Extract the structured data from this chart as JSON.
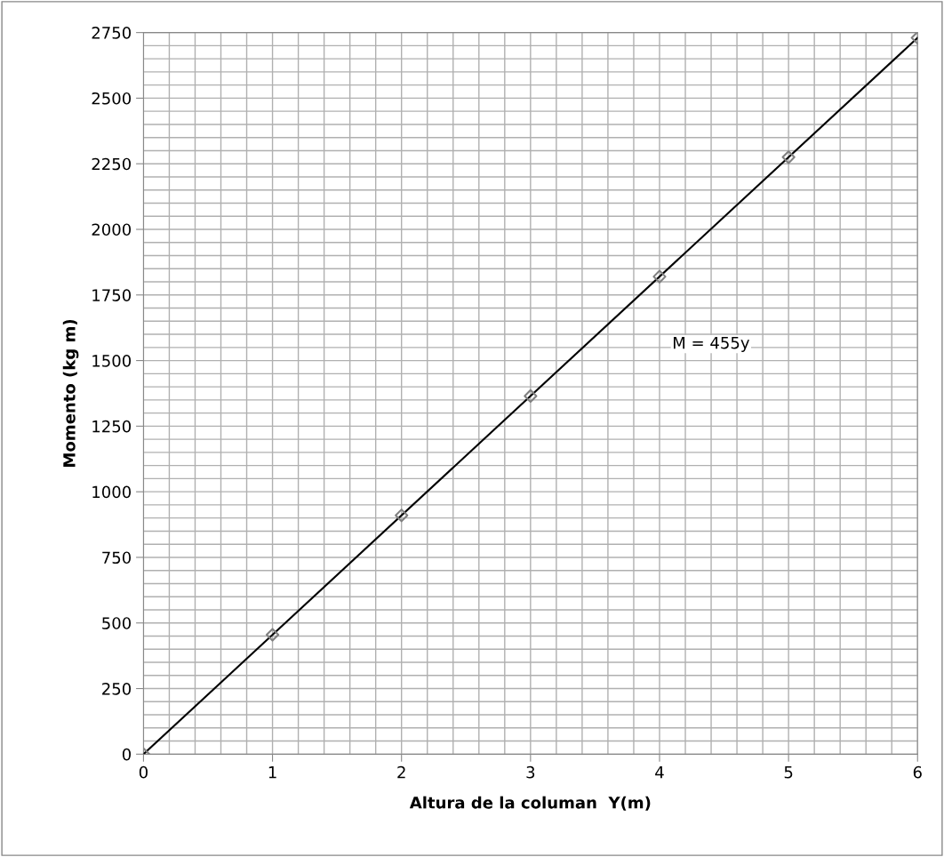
{
  "chart_data": {
    "type": "scatter",
    "xlabel": "Altura de la columan  Y(m)",
    "ylabel": "Momento (kg m)",
    "x": [
      0,
      1,
      2,
      3,
      4,
      5,
      6
    ],
    "series": [
      {
        "color": "#808080",
        "marker": "diamond",
        "values": [
          0,
          455,
          910,
          1365,
          1820,
          2275,
          2730
        ]
      },
      {
        "type": "line",
        "color": "#000000",
        "marker": "none",
        "x": [
          0,
          6
        ],
        "values": [
          0,
          2730
        ]
      }
    ],
    "annotations": [
      "M = 455y"
    ],
    "xlim": [
      0,
      6
    ],
    "xticks": [
      0,
      1,
      2,
      3,
      4,
      5,
      6
    ],
    "ylim": [
      0,
      2750
    ],
    "yticks": [
      0,
      250,
      500,
      750,
      1000,
      1250,
      1500,
      1750,
      2000,
      2250,
      2500,
      2750
    ],
    "grid": true,
    "legend": false
  }
}
